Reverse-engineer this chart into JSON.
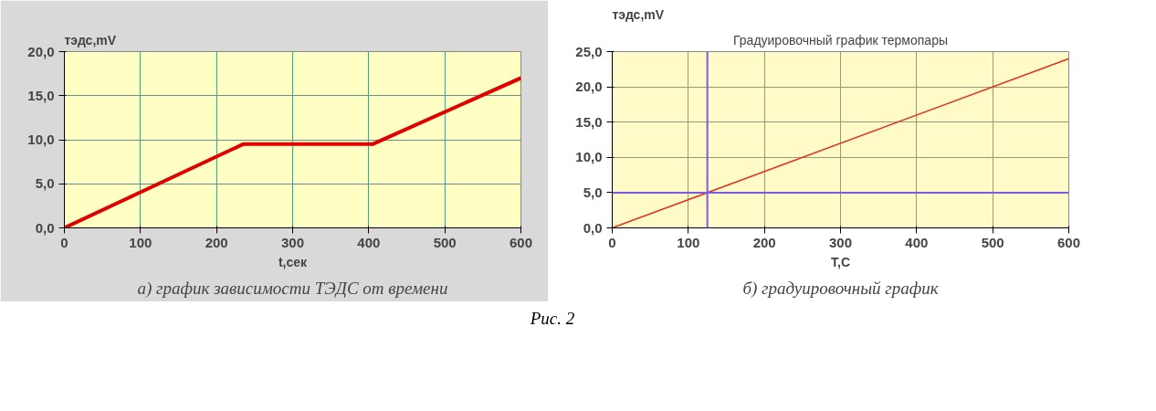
{
  "chart_data": [
    {
      "type": "line",
      "ylabel": "тэдс,mV",
      "xlabel": "t,сек",
      "x": [
        0,
        235,
        405,
        600
      ],
      "series": [
        {
          "color": "#e00000",
          "values": [
            0,
            9.5,
            9.5,
            17
          ]
        }
      ],
      "xlim": [
        0,
        600
      ],
      "xticks": [
        0,
        100,
        200,
        300,
        400,
        500,
        600
      ],
      "ylim": [
        0,
        20
      ],
      "yticks": [
        {
          "value": 0,
          "label": "0,0"
        },
        {
          "value": 5,
          "label": "5,0"
        },
        {
          "value": 10,
          "label": "10,0"
        },
        {
          "value": 15,
          "label": "15,0"
        },
        {
          "value": 20,
          "label": "20,0"
        }
      ],
      "grid": true,
      "annotations": [
        "а) график зависимости ТЭДС от времени"
      ]
    },
    {
      "type": "line",
      "title": "Градуировочный график термопары",
      "ylabel": "тэдс,mV",
      "xlabel": "T,C",
      "x": [
        0,
        600
      ],
      "series": [
        {
          "color": "#e03020",
          "values": [
            0,
            24
          ]
        }
      ],
      "xlim": [
        0,
        600
      ],
      "xticks": [
        0,
        100,
        200,
        300,
        400,
        500,
        600
      ],
      "ylim": [
        0,
        25
      ],
      "yticks": [
        {
          "value": 0,
          "label": "0,0"
        },
        {
          "value": 5,
          "label": "5,0"
        },
        {
          "value": 10,
          "label": "10,0"
        },
        {
          "value": 15,
          "label": "15,0"
        },
        {
          "value": 20,
          "label": "20,0"
        },
        {
          "value": 25,
          "label": "25,0"
        }
      ],
      "ref_lines": [
        {
          "axis": "x",
          "value": 125,
          "color": "#7b5ce0"
        },
        {
          "axis": "y",
          "value": 5,
          "color": "#7b5ce0"
        }
      ],
      "grid": true,
      "annotations": [
        "б) градуировочный график",
        "Рис. 2"
      ]
    }
  ]
}
